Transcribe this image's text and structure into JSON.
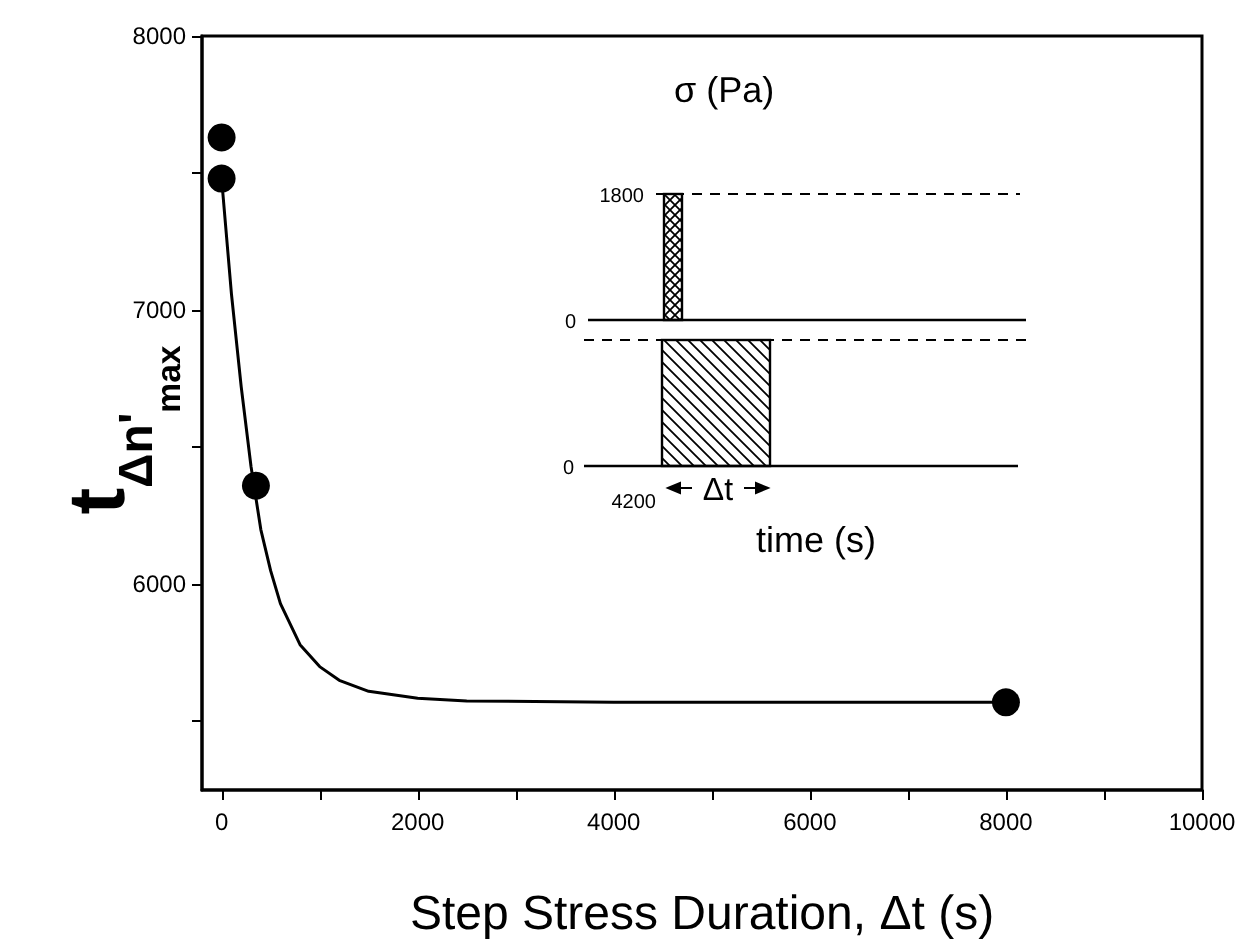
{
  "chart_data": {
    "type": "scatter",
    "xlabel": "Step Stress Duration, Δt (s)",
    "ylabel": "t$_{Δn'}$$_{max}$",
    "annotations": [
      "σ (Pa)",
      "1800",
      "0",
      "0",
      "4200",
      "Δt",
      "time (s)"
    ],
    "xlim": [
      -200,
      10000
    ],
    "xticks": [
      0,
      {
        "value": 1000,
        "label": null
      },
      2000,
      {
        "value": 3000,
        "label": null
      },
      4000,
      {
        "value": 5000,
        "label": null
      },
      6000,
      {
        "value": 7000,
        "label": null
      },
      8000,
      {
        "value": 9000,
        "label": null
      },
      10000
    ],
    "ylim": [
      5250,
      8000
    ],
    "yticks": [
      {
        "value": 5500,
        "label": null
      },
      6000,
      {
        "value": 6500,
        "label": null
      },
      7000,
      {
        "value": 7500,
        "label": null
      },
      8000
    ],
    "grid": false,
    "marker": "circle",
    "series": [
      {
        "color": "#000000",
        "x": [
          0,
          0,
          350,
          8000
        ],
        "values": [
          7630,
          7480,
          6360,
          5570
        ]
      },
      {
        "type": "line",
        "color": "#000000",
        "marker": "none",
        "line_style": "solid",
        "x": [
          0,
          100,
          200,
          300,
          400,
          500,
          600,
          800,
          1000,
          1200,
          1500,
          2000,
          2500,
          4000,
          6000,
          8000
        ],
        "values": [
          7480,
          7060,
          6720,
          6430,
          6200,
          6050,
          5930,
          5780,
          5700,
          5650,
          5610,
          5585,
          5575,
          5570,
          5570,
          5570
        ]
      }
    ]
  }
}
